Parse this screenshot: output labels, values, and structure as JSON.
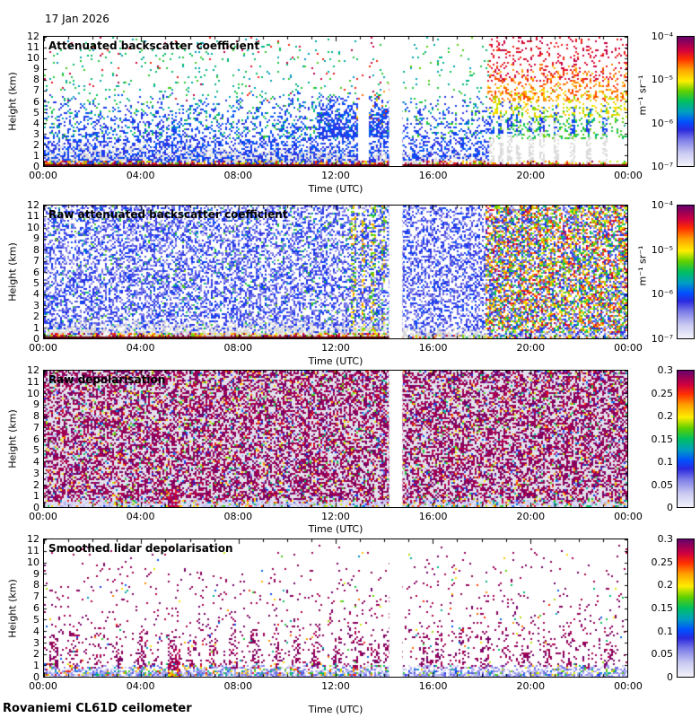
{
  "page": {
    "date": "17 Jan 2026",
    "footer": "Rovaniemi CL61D ceilometer"
  },
  "chart_data": {
    "type": "multi-panel-heatmap",
    "instrument_note": "four time-height quicklook panels, 24 h, 0-12 km",
    "colormap": [
      [
        0.0,
        "#f2f2fb"
      ],
      [
        0.1,
        "#c9c9f2"
      ],
      [
        0.2,
        "#7d7de8"
      ],
      [
        0.28,
        "#2a2ae0"
      ],
      [
        0.34,
        "#0050ff"
      ],
      [
        0.42,
        "#00a0c0"
      ],
      [
        0.5,
        "#00c060"
      ],
      [
        0.58,
        "#60d000"
      ],
      [
        0.66,
        "#ffee00"
      ],
      [
        0.75,
        "#ffa000"
      ],
      [
        0.83,
        "#ff3000"
      ],
      [
        0.9,
        "#d00040"
      ],
      [
        1.0,
        "#6a006a"
      ]
    ],
    "panels": [
      {
        "id": "attenuated-backscatter",
        "title": "Attenuated backscatter coefficient",
        "xlabel": "Time (UTC)",
        "ylabel": "Height (km)",
        "xlim": [
          0,
          24
        ],
        "ylim": [
          0,
          12
        ],
        "x_ticks": [
          "00:00",
          "04:00",
          "08:00",
          "12:00",
          "16:00",
          "20:00",
          "00:00"
        ],
        "y_ticks": [
          "12",
          "11",
          "10",
          "9",
          "8",
          "7",
          "6",
          "5",
          "4",
          "3",
          "2",
          "1",
          "0"
        ],
        "colorbar": {
          "ticks": [
            "10⁻⁴",
            "10⁻⁵",
            "10⁻⁶",
            "10⁻⁷"
          ],
          "unit": "m⁻¹ sr⁻¹",
          "scale": "log"
        },
        "data_gaps_utc": [
          [
            14.2,
            14.75
          ]
        ],
        "pattern_layers": [
          {
            "c": "#dcdcdc",
            "t": [
              0,
              14.2
            ],
            "h": [
              0,
              2.5
            ],
            "d": [
              0.97,
              0
            ]
          },
          {
            "t": [
              0,
              14.2
            ],
            "h": [
              0.3,
              7
            ],
            "d": [
              0.5,
              0.02
            ],
            "v": [
              0.25,
              0.36
            ]
          },
          {
            "t": [
              0,
              14.2
            ],
            "h": [
              2.5,
              12
            ],
            "d": [
              0.09,
              0.025
            ],
            "v": [
              0.4,
              0.56
            ]
          },
          {
            "t": [
              0,
              14.2
            ],
            "h": [
              6,
              12
            ],
            "d": [
              0.012,
              0.012
            ],
            "v": [
              0.84,
              0.94
            ]
          },
          {
            "t": [
              11.3,
              14.2
            ],
            "h": [
              2.8,
              6.5
            ],
            "d": [
              0.8,
              0.08
            ],
            "v": [
              0.25,
              0.37
            ]
          },
          {
            "c": "#ffffff",
            "t": [
              12.95,
              13.3
            ],
            "h": [
              0.5,
              12
            ],
            "d": [
              1,
              1
            ]
          },
          {
            "t": [
              12.8,
              14.2
            ],
            "h": [
              4,
              9.5
            ],
            "d": [
              0.05,
              0.03
            ],
            "v": [
              0.62,
              0.88
            ]
          },
          {
            "c": "#dcdcdc",
            "t": [
              14.75,
              18.3
            ],
            "h": [
              0,
              1.6
            ],
            "d": [
              0.9,
              0
            ]
          },
          {
            "t": [
              14.75,
              18.3
            ],
            "h": [
              0.5,
              6.5
            ],
            "d": [
              0.45,
              0.04
            ],
            "v": [
              0.25,
              0.36
            ]
          },
          {
            "t": [
              14.75,
              18.3
            ],
            "h": [
              2.5,
              12
            ],
            "d": [
              0.08,
              0.025
            ],
            "v": [
              0.42,
              0.58
            ]
          },
          {
            "t": [
              18.3,
              24
            ],
            "h": [
              2.6,
              5.5
            ],
            "d": [
              0.3,
              0.1
            ],
            "v": [
              0.46,
              0.6
            ]
          },
          {
            "t": [
              18.3,
              24
            ],
            "h": [
              4.5,
              7.5
            ],
            "d": [
              0.28,
              0.1
            ],
            "v": [
              0.6,
              0.72
            ]
          },
          {
            "t": [
              18.3,
              24
            ],
            "h": [
              6,
              9.5
            ],
            "d": [
              0.28,
              0.1
            ],
            "v": [
              0.72,
              0.84
            ]
          },
          {
            "t": [
              18.3,
              24
            ],
            "h": [
              8,
              12
            ],
            "d": [
              0.16,
              0.12
            ],
            "v": [
              0.84,
              0.93
            ]
          },
          {
            "ts": [
              18.45,
              18.8,
              19.15,
              19.55,
              20.05,
              20.5,
              21.1,
              21.75,
              22.4,
              23.1
            ],
            "w": 0.14,
            "h": [
              0,
              4.5
            ],
            "d": [
              0.85,
              0.05
            ],
            "c": "#dcdcdc"
          },
          {
            "ts": [
              18.45,
              18.8,
              19.15,
              19.55,
              20.05,
              20.5,
              21.1,
              21.75,
              22.4,
              23.1
            ],
            "w": 0.14,
            "h": [
              3,
              6
            ],
            "d": [
              0.55,
              0.05
            ],
            "v": [
              0.26,
              0.36
            ]
          },
          {
            "t": [
              0,
              24
            ],
            "h": [
              0,
              0.4
            ],
            "d": [
              0.92,
              0.45
            ],
            "v": [
              0.55,
              1
            ]
          },
          {
            "c": "#6a0010",
            "t": [
              0,
              24
            ],
            "h": [
              0,
              0.12
            ],
            "d": [
              1,
              1
            ]
          }
        ]
      },
      {
        "id": "raw-attenuated-backscatter",
        "title": "Raw attenuated backscatter coefficient",
        "xlabel": "Time (UTC)",
        "ylabel": "Height (km)",
        "xlim": [
          0,
          24
        ],
        "ylim": [
          0,
          12
        ],
        "x_ticks": [
          "00:00",
          "04:00",
          "08:00",
          "12:00",
          "16:00",
          "20:00",
          "00:00"
        ],
        "y_ticks": [
          "12",
          "11",
          "10",
          "9",
          "8",
          "7",
          "6",
          "5",
          "4",
          "3",
          "2",
          "1",
          "0"
        ],
        "colorbar": {
          "ticks": [
            "10⁻⁴",
            "10⁻⁵",
            "10⁻⁶",
            "10⁻⁷"
          ],
          "unit": "m⁻¹ sr⁻¹",
          "scale": "log"
        },
        "data_gaps_utc": [
          [
            14.2,
            14.75
          ]
        ],
        "pattern_layers": [
          {
            "t": [
              0,
              24
            ],
            "h": [
              0,
              12
            ],
            "d": [
              0.48,
              0.44
            ],
            "v": [
              0.16,
              0.34
            ]
          },
          {
            "t": [
              0,
              14.2
            ],
            "h": [
              0,
              12
            ],
            "d": [
              0.03,
              0.03
            ],
            "v": [
              0.42,
              0.6
            ]
          },
          {
            "c": "#d9d9d9",
            "t": [
              0,
              14.2
            ],
            "h": [
              0,
              1.8
            ],
            "d": [
              0.92,
              0
            ]
          },
          {
            "c": "#d9d9d9",
            "t": [
              14.75,
              18.2
            ],
            "h": [
              0,
              1.2
            ],
            "d": [
              0.85,
              0
            ]
          },
          {
            "c": "#d9d9d9",
            "t": [
              18.2,
              24
            ],
            "h": [
              0,
              0.8
            ],
            "d": [
              0.75,
              0
            ]
          },
          {
            "ts": [
              12.75,
              13.15,
              13.55,
              13.95
            ],
            "w": 0.1,
            "h": [
              0,
              12
            ],
            "d": [
              0.3,
              0.3
            ],
            "v": [
              0.5,
              0.8
            ]
          },
          {
            "t": [
              18.2,
              24
            ],
            "h": [
              0.6,
              12
            ],
            "d": [
              0.42,
              0.4
            ],
            "v": [
              0.45,
              0.93
            ]
          },
          {
            "t": [
              0,
              14.2
            ],
            "h": [
              0,
              0.35
            ],
            "d": [
              0.9,
              0.55
            ],
            "v": [
              0.55,
              1
            ]
          },
          {
            "t": [
              14.75,
              24
            ],
            "h": [
              0,
              0.2
            ],
            "d": [
              0.45,
              0.3
            ],
            "v": [
              0.45,
              0.9
            ]
          },
          {
            "c": "#5a0010",
            "t": [
              0,
              14.2
            ],
            "h": [
              0,
              0.1
            ],
            "d": [
              1,
              1
            ]
          }
        ]
      },
      {
        "id": "raw-depolarisation",
        "title": "Raw depolarisation",
        "xlabel": "Time (UTC)",
        "ylabel": "Height (km)",
        "xlim": [
          0,
          24
        ],
        "ylim": [
          0,
          12
        ],
        "x_ticks": [
          "00:00",
          "04:00",
          "08:00",
          "12:00",
          "16:00",
          "20:00",
          "00:00"
        ],
        "y_ticks": [
          "12",
          "11",
          "10",
          "9",
          "8",
          "7",
          "6",
          "5",
          "4",
          "3",
          "2",
          "1",
          "0"
        ],
        "colorbar": {
          "ticks": [
            "0.3",
            "0.25",
            "0.2",
            "0.15",
            "0.1",
            "0.05",
            "0"
          ],
          "unit": "",
          "scale": "linear"
        },
        "data_gaps_utc": [
          [
            14.2,
            14.75
          ]
        ],
        "pattern_layers": [
          {
            "c": "#e2e2ec",
            "t": [
              0,
              24
            ],
            "h": [
              0,
              12
            ],
            "d": [
              1,
              1
            ]
          },
          {
            "t": [
              0,
              24
            ],
            "h": [
              0.4,
              12
            ],
            "d": [
              0.5,
              0.5
            ],
            "v": [
              0.92,
              1
            ]
          },
          {
            "t": [
              0,
              24
            ],
            "h": [
              0.4,
              12
            ],
            "d": [
              0.11,
              0.11
            ],
            "v": [
              0.05,
              0.9
            ]
          },
          {
            "t": [
              0,
              24
            ],
            "h": [
              0,
              0.5
            ],
            "d": [
              0.95,
              0.55
            ],
            "v": [
              0.02,
              0.14
            ]
          },
          {
            "t": [
              0,
              24
            ],
            "h": [
              0,
              0.55
            ],
            "d": [
              0.25,
              0.18
            ],
            "v": [
              0.3,
              0.95
            ]
          },
          {
            "t": [
              5.1,
              5.5
            ],
            "h": [
              0,
              1.7
            ],
            "d": [
              0.9,
              0.35
            ],
            "v": [
              0.86,
              0.99
            ]
          }
        ]
      },
      {
        "id": "smoothed-lidar-depolarisation",
        "title": "Smoothed lidar depolarisation",
        "xlabel": "Time (UTC)",
        "ylabel": "Height (km)",
        "xlim": [
          0,
          24
        ],
        "ylim": [
          0,
          12
        ],
        "x_ticks": [
          "00:00",
          "04:00",
          "08:00",
          "12:00",
          "16:00",
          "20:00",
          "00:00"
        ],
        "y_ticks": [
          "12",
          "11",
          "10",
          "9",
          "8",
          "7",
          "6",
          "5",
          "4",
          "3",
          "2",
          "1",
          "0"
        ],
        "colorbar": {
          "ticks": [
            "0.3",
            "0.25",
            "0.2",
            "0.15",
            "0.1",
            "0.05",
            "0"
          ],
          "unit": "",
          "scale": "linear"
        },
        "data_gaps_utc": [
          [
            14.2,
            14.75
          ]
        ],
        "pattern_layers": [
          {
            "t": [
              0,
              24
            ],
            "h": [
              0.9,
              11.5
            ],
            "d": [
              0.09,
              0.01
            ],
            "v": [
              0.93,
              1
            ]
          },
          {
            "ts": [
              0.4,
              1.2,
              2.2,
              3.1,
              4,
              5.3,
              6.1,
              7,
              7.8,
              8.7,
              9.6,
              10.4,
              11.2,
              12.1,
              12.9,
              13.6,
              14.1,
              15.6,
              16.3,
              17.2,
              18.1,
              19,
              19.8,
              20.7,
              21.5,
              22.3,
              23.2
            ],
            "w": 0.28,
            "h": [
              0.8,
              4.8
            ],
            "d": [
              0.4,
              0.02
            ],
            "v": [
              0.93,
              1
            ]
          },
          {
            "t": [
              0,
              24
            ],
            "h": [
              1,
              11
            ],
            "d": [
              0.008,
              0.004
            ],
            "v": [
              0.3,
              0.85
            ]
          },
          {
            "t": [
              0,
              24
            ],
            "h": [
              0,
              0.95
            ],
            "d": [
              0.92,
              0.3
            ],
            "v": [
              0.06,
              0.24
            ]
          },
          {
            "t": [
              0,
              14.2
            ],
            "h": [
              0.15,
              1.2
            ],
            "d": [
              0.28,
              0.08
            ],
            "v": [
              0.35,
              0.9
            ]
          },
          {
            "t": [
              14.75,
              24
            ],
            "h": [
              0.1,
              1
            ],
            "d": [
              0.18,
              0.05
            ],
            "v": [
              0.28,
              0.7
            ]
          },
          {
            "t": [
              5.1,
              5.55
            ],
            "h": [
              0,
              3.3
            ],
            "d": [
              0.85,
              0.12
            ],
            "v": [
              0.9,
              0.99
            ]
          },
          {
            "t": [
              5.15,
              5.5
            ],
            "h": [
              0,
              0.6
            ],
            "d": [
              0.8,
              0.5
            ],
            "v": [
              0.55,
              0.8
            ]
          }
        ]
      }
    ]
  }
}
